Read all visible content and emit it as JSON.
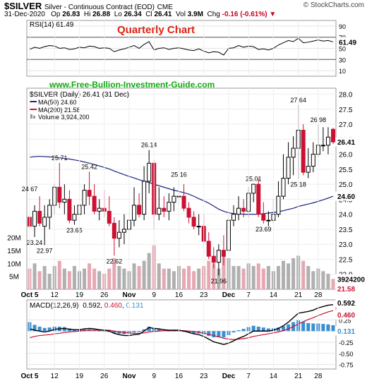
{
  "header": {
    "symbol": "$SILVER",
    "description": "Silver - Continuous Contract (EOD)",
    "exchange": "CME",
    "source": "© StockCharts.com",
    "date": "31-Dec-2020",
    "op_label": "Op",
    "op": "26.83",
    "hi_label": "Hi",
    "hi": "26.88",
    "lo_label": "Lo",
    "lo": "26.34",
    "cl_label": "Cl",
    "cl": "26.41",
    "vol_label": "Vol",
    "vol": "3.9M",
    "chg_label": "Chg",
    "chg": "-0.16 (-0.61%)"
  },
  "colors": {
    "up": "#ffffff",
    "down": "#cc1133",
    "ma50": "#1a237e",
    "ma200": "#cc1133",
    "rsi": "#000000",
    "macd": "#000000",
    "signal": "#cc1133",
    "hist": "#3b8fd1",
    "accent_text": "#dd2211",
    "site_text": "#11aa11"
  },
  "chart_data": [
    {
      "type": "line",
      "panel": "rsi",
      "legend": "RSI(14) 61.49",
      "label_value": "61.49",
      "ylim": [
        0,
        100
      ],
      "yticks": [
        90,
        70,
        50,
        30,
        10
      ],
      "ref_lines": [
        70,
        30
      ],
      "x": [
        "Oct 5",
        "Oct 6",
        "Oct 7",
        "Oct 8",
        "Oct 9",
        "Oct 12",
        "Oct 13",
        "Oct 14",
        "Oct 15",
        "Oct 16",
        "Oct 19",
        "Oct 20",
        "Oct 21",
        "Oct 22",
        "Oct 23",
        "Oct 26",
        "Oct 27",
        "Oct 28",
        "Oct 29",
        "Oct 30",
        "Nov 2",
        "Nov 3",
        "Nov 4",
        "Nov 5",
        "Nov 6",
        "Nov 9",
        "Nov 10",
        "Nov 11",
        "Nov 12",
        "Nov 13",
        "Nov 16",
        "Nov 17",
        "Nov 18",
        "Nov 19",
        "Nov 20",
        "Nov 23",
        "Nov 24",
        "Nov 25",
        "Nov 27",
        "Nov 30",
        "Dec 1",
        "Dec 2",
        "Dec 3",
        "Dec 4",
        "Dec 7",
        "Dec 8",
        "Dec 9",
        "Dec 10",
        "Dec 11",
        "Dec 14",
        "Dec 15",
        "Dec 16",
        "Dec 17",
        "Dec 18",
        "Dec 21",
        "Dec 22",
        "Dec 23",
        "Dec 24",
        "Dec 28",
        "Dec 29",
        "Dec 30",
        "Dec 31"
      ],
      "values": [
        48,
        52,
        50,
        53,
        55,
        54,
        50,
        51,
        48,
        49,
        52,
        51,
        54,
        53,
        50,
        51,
        50,
        44,
        47,
        49,
        52,
        55,
        50,
        57,
        62,
        47,
        50,
        51,
        48,
        50,
        51,
        49,
        47,
        46,
        49,
        45,
        42,
        44,
        43,
        38,
        50,
        51,
        55,
        52,
        54,
        53,
        48,
        49,
        47,
        50,
        56,
        60,
        64,
        62,
        68,
        60,
        61,
        63,
        65,
        63,
        64,
        61.49
      ]
    },
    {
      "type": "candlestick",
      "panel": "price",
      "legend": "$SILVER (Daily) 26.41 (31 Dec)",
      "ylim": [
        21.5,
        28.2
      ],
      "yticks": [
        28.0,
        27.5,
        27.0,
        26.5,
        26.0,
        25.5,
        25.0,
        24.5,
        24.0,
        23.5,
        23.0,
        22.5,
        22.0
      ],
      "last_label": "26.41",
      "x": [
        "Oct 5",
        "Oct 6",
        "Oct 7",
        "Oct 8",
        "Oct 9",
        "Oct 12",
        "Oct 13",
        "Oct 14",
        "Oct 15",
        "Oct 16",
        "Oct 19",
        "Oct 20",
        "Oct 21",
        "Oct 22",
        "Oct 23",
        "Oct 26",
        "Oct 27",
        "Oct 28",
        "Oct 29",
        "Oct 30",
        "Nov 2",
        "Nov 3",
        "Nov 4",
        "Nov 5",
        "Nov 6",
        "Nov 9",
        "Nov 10",
        "Nov 11",
        "Nov 12",
        "Nov 13",
        "Nov 16",
        "Nov 17",
        "Nov 18",
        "Nov 19",
        "Nov 20",
        "Nov 23",
        "Nov 24",
        "Nov 25",
        "Nov 27",
        "Nov 30",
        "Dec 1",
        "Dec 2",
        "Dec 3",
        "Dec 4",
        "Dec 7",
        "Dec 8",
        "Dec 9",
        "Dec 10",
        "Dec 11",
        "Dec 14",
        "Dec 15",
        "Dec 16",
        "Dec 17",
        "Dec 18",
        "Dec 21",
        "Dec 22",
        "Dec 23",
        "Dec 24",
        "Dec 28",
        "Dec 29",
        "Dec 30",
        "Dec 31"
      ],
      "open": [
        23.9,
        23.6,
        24.1,
        23.6,
        23.9,
        24.3,
        24.9,
        24.4,
        24.5,
        23.8,
        24.0,
        24.3,
        24.8,
        24.6,
        24.1,
        24.2,
        24.1,
        23.7,
        23.2,
        23.4,
        23.5,
        23.8,
        24.3,
        24.0,
        25.1,
        25.7,
        24.0,
        24.2,
        24.1,
        24.4,
        24.6,
        24.6,
        24.2,
        23.9,
        23.6,
        23.6,
        23.1,
        22.6,
        22.4,
        22.8,
        22.8,
        23.8,
        24.0,
        24.2,
        24.1,
        24.7,
        25.0,
        24.0,
        23.8,
        23.8,
        24.0,
        24.6,
        25.2,
        25.9,
        26.2,
        26.8,
        25.4,
        25.6,
        26.0,
        26.3,
        26.3,
        26.83
      ],
      "high": [
        24.7,
        24.3,
        24.6,
        24.3,
        24.5,
        25.0,
        25.71,
        25.0,
        24.8,
        24.3,
        24.7,
        25.0,
        25.42,
        25.0,
        24.5,
        24.8,
        24.6,
        23.9,
        23.8,
        24.0,
        24.2,
        24.9,
        24.7,
        25.6,
        26.14,
        25.8,
        24.9,
        24.6,
        24.7,
        24.9,
        25.16,
        25.0,
        24.4,
        24.1,
        24.0,
        24.0,
        23.4,
        22.9,
        23.0,
        23.3,
        24.0,
        24.3,
        24.6,
        24.5,
        24.9,
        25.01,
        25.2,
        24.4,
        24.1,
        24.5,
        25.1,
        26.0,
        26.4,
        26.6,
        27.64,
        27.0,
        26.2,
        26.4,
        26.98,
        26.9,
        26.9,
        26.88
      ],
      "low": [
        23.4,
        23.24,
        23.6,
        22.97,
        23.5,
        24.0,
        24.2,
        24.0,
        23.7,
        23.65,
        23.8,
        24.0,
        24.3,
        24.0,
        23.8,
        23.9,
        23.6,
        22.62,
        22.9,
        23.0,
        23.1,
        23.6,
        23.9,
        23.8,
        24.7,
        23.5,
        23.8,
        23.9,
        23.8,
        24.1,
        24.3,
        24.1,
        23.7,
        23.5,
        23.3,
        23.1,
        22.5,
        22.2,
        21.96,
        22.3,
        22.7,
        23.6,
        23.8,
        23.9,
        23.9,
        24.4,
        23.9,
        23.69,
        23.6,
        23.7,
        23.9,
        24.5,
        25.0,
        25.3,
        25.18,
        25.3,
        25.2,
        25.4,
        25.9,
        26.1,
        26.0,
        26.34
      ],
      "close": [
        23.6,
        24.1,
        23.7,
        23.9,
        24.3,
        24.9,
        24.4,
        24.5,
        23.8,
        24.0,
        24.3,
        24.8,
        24.6,
        24.1,
        24.2,
        24.1,
        23.7,
        23.2,
        23.4,
        23.5,
        23.8,
        24.3,
        24.0,
        25.1,
        25.7,
        24.0,
        24.2,
        24.1,
        24.4,
        24.6,
        24.6,
        24.2,
        23.9,
        23.6,
        23.6,
        23.1,
        22.6,
        22.4,
        22.8,
        22.6,
        23.8,
        24.0,
        24.2,
        24.1,
        24.7,
        25.0,
        24.0,
        23.8,
        23.8,
        24.0,
        24.6,
        25.2,
        25.9,
        26.2,
        26.8,
        25.4,
        25.6,
        26.0,
        26.3,
        26.3,
        26.57,
        26.41
      ],
      "volume": [
        8,
        10,
        7,
        9,
        6,
        9,
        11,
        8,
        7,
        9,
        7,
        8,
        10,
        8,
        7,
        6,
        8,
        12,
        9,
        8,
        7,
        10,
        9,
        11,
        14,
        17,
        10,
        8,
        8,
        7,
        9,
        8,
        9,
        7,
        8,
        9,
        11,
        10,
        8,
        14,
        12,
        9,
        9,
        8,
        10,
        9,
        10,
        8,
        9,
        7,
        9,
        11,
        10,
        12,
        13,
        11,
        9,
        7,
        8,
        7,
        6,
        4
      ],
      "volume_ylim": [
        0,
        30
      ],
      "volume_ticks": [
        "20M",
        "15M",
        "10M",
        "5M"
      ],
      "volume_label": "3924200",
      "annotations": [
        {
          "x": "Oct 6",
          "value": 23.24,
          "label": "23.24",
          "pos": "below"
        },
        {
          "x": "Oct 8",
          "value": 22.97,
          "label": "22.97",
          "pos": "below"
        },
        {
          "x": "Oct 13",
          "value": 25.71,
          "label": "25.71",
          "pos": "above"
        },
        {
          "x": "Oct 5",
          "value": 24.67,
          "label": "24.67",
          "pos": "above"
        },
        {
          "x": "Oct 16",
          "value": 23.65,
          "label": "23.65",
          "pos": "below"
        },
        {
          "x": "Oct 21",
          "value": 25.42,
          "label": "25.42",
          "pos": "above"
        },
        {
          "x": "Oct 28",
          "value": 22.62,
          "label": "22.62",
          "pos": "below"
        },
        {
          "x": "Nov 6",
          "value": 26.14,
          "label": "26.14",
          "pos": "above"
        },
        {
          "x": "Nov 16",
          "value": 25.16,
          "label": "25.16",
          "pos": "above"
        },
        {
          "x": "Nov 27",
          "value": 21.96,
          "label": "21.96",
          "pos": "below"
        },
        {
          "x": "Dec 8",
          "value": 25.01,
          "label": "25.01",
          "pos": "above"
        },
        {
          "x": "Dec 10",
          "value": 23.69,
          "label": "23.69",
          "pos": "below"
        },
        {
          "x": "Dec 21",
          "value": 27.64,
          "label": "27.64",
          "pos": "above"
        },
        {
          "x": "Dec 21",
          "value": 25.18,
          "label": "25.18",
          "pos": "below"
        },
        {
          "x": "Dec 28",
          "value": 26.98,
          "label": "26.98",
          "pos": "above"
        }
      ]
    },
    {
      "type": "line",
      "panel": "price-ma",
      "series": [
        {
          "name": "MA(50) 24.60",
          "values": [
            25.9,
            25.92,
            25.93,
            25.92,
            25.91,
            25.9,
            25.88,
            25.86,
            25.84,
            25.81,
            25.78,
            25.74,
            25.7,
            25.66,
            25.61,
            25.56,
            25.51,
            25.44,
            25.38,
            25.32,
            25.26,
            25.21,
            25.15,
            25.1,
            25.06,
            25.0,
            24.95,
            24.9,
            24.85,
            24.8,
            24.76,
            24.72,
            24.67,
            24.6,
            24.52,
            24.45,
            24.37,
            24.27,
            24.17,
            24.1,
            24.05,
            24.02,
            24.01,
            24.0,
            24.0,
            24.0,
            24.0,
            24.02,
            24.04,
            24.06,
            24.08,
            24.12,
            24.16,
            24.2,
            24.26,
            24.3,
            24.34,
            24.38,
            24.43,
            24.48,
            24.54,
            24.6
          ]
        },
        {
          "name": "MA(200) 21.58",
          "values": []
        }
      ]
    },
    {
      "type": "line",
      "panel": "macd",
      "legend_name": "MACD(12,26,9)",
      "legend_vals": [
        "0.592",
        "0.460",
        "0.131"
      ],
      "ylim": [
        -0.85,
        0.7
      ],
      "yticks": [
        0.25,
        0.0,
        -0.25,
        -0.5,
        -0.75
      ],
      "ytick_labels": [
        "0.25",
        "0.00",
        "-0.25",
        "-0.50",
        "-0.75"
      ],
      "macd": [
        0.05,
        0.02,
        0.0,
        -0.02,
        0.0,
        0.04,
        0.05,
        0.06,
        0.04,
        0.03,
        0.03,
        0.05,
        0.06,
        0.05,
        0.03,
        0.02,
        0.0,
        -0.05,
        -0.08,
        -0.1,
        -0.1,
        -0.08,
        -0.07,
        0.0,
        0.08,
        0.06,
        0.05,
        0.03,
        0.02,
        0.02,
        0.02,
        0.0,
        -0.03,
        -0.06,
        -0.08,
        -0.12,
        -0.18,
        -0.24,
        -0.27,
        -0.3,
        -0.27,
        -0.22,
        -0.16,
        -0.12,
        -0.06,
        0.0,
        0.0,
        0.0,
        0.0,
        0.02,
        0.06,
        0.12,
        0.2,
        0.3,
        0.4,
        0.42,
        0.44,
        0.47,
        0.52,
        0.55,
        0.58,
        0.592
      ],
      "signal": [
        -0.15,
        -0.12,
        -0.1,
        -0.09,
        -0.08,
        -0.06,
        -0.05,
        -0.03,
        -0.02,
        -0.01,
        0.0,
        0.01,
        0.02,
        0.02,
        0.02,
        0.02,
        0.02,
        0.0,
        -0.02,
        -0.03,
        -0.04,
        -0.05,
        -0.05,
        -0.04,
        -0.02,
        -0.01,
        0.0,
        0.01,
        0.01,
        0.01,
        0.01,
        0.01,
        0.0,
        -0.01,
        -0.03,
        -0.05,
        -0.07,
        -0.1,
        -0.13,
        -0.16,
        -0.18,
        -0.19,
        -0.18,
        -0.17,
        -0.15,
        -0.12,
        -0.1,
        -0.08,
        -0.06,
        -0.04,
        -0.02,
        0.01,
        0.05,
        0.1,
        0.16,
        0.21,
        0.26,
        0.3,
        0.35,
        0.39,
        0.43,
        0.46
      ],
      "hist": [
        0.2,
        0.14,
        0.1,
        0.07,
        0.08,
        0.1,
        0.1,
        0.09,
        0.06,
        0.04,
        0.03,
        0.04,
        0.04,
        0.03,
        0.01,
        0.0,
        -0.02,
        -0.05,
        -0.06,
        -0.07,
        -0.06,
        -0.03,
        -0.02,
        0.04,
        0.1,
        0.07,
        0.05,
        0.02,
        0.01,
        0.01,
        0.01,
        -0.01,
        -0.03,
        -0.05,
        -0.05,
        -0.07,
        -0.11,
        -0.14,
        -0.14,
        -0.14,
        -0.09,
        -0.03,
        0.02,
        0.05,
        0.09,
        0.12,
        0.1,
        0.08,
        0.06,
        0.06,
        0.08,
        0.11,
        0.15,
        0.2,
        0.24,
        0.21,
        0.18,
        0.17,
        0.17,
        0.16,
        0.15,
        0.131
      ]
    }
  ],
  "overlay": {
    "title": "Quarterly Chart",
    "website": "www.Free-Bullion-Investment-Guide.com"
  },
  "legend": {
    "ma50": "MA(50) 24.60",
    "ma200": "MA(200) 21.58",
    "volume": "Volume 3,924,200",
    "ma50_label": "24.60",
    "ma200_label": "21.58"
  },
  "xaxis": {
    "labels": [
      {
        "text": "Oct 5",
        "x": "Oct 5"
      },
      {
        "text": "12",
        "x": "Oct 12"
      },
      {
        "text": "19",
        "x": "Oct 19"
      },
      {
        "text": "26",
        "x": "Oct 26"
      },
      {
        "text": "Nov",
        "x": "Nov 2"
      },
      {
        "text": "9",
        "x": "Nov 9"
      },
      {
        "text": "16",
        "x": "Nov 16"
      },
      {
        "text": "23",
        "x": "Nov 23"
      },
      {
        "text": "Dec",
        "x": "Dec 1"
      },
      {
        "text": "7",
        "x": "Dec 7"
      },
      {
        "text": "14",
        "x": "Dec 14"
      },
      {
        "text": "21",
        "x": "Dec 21"
      },
      {
        "text": "28",
        "x": "Dec 28"
      }
    ]
  }
}
